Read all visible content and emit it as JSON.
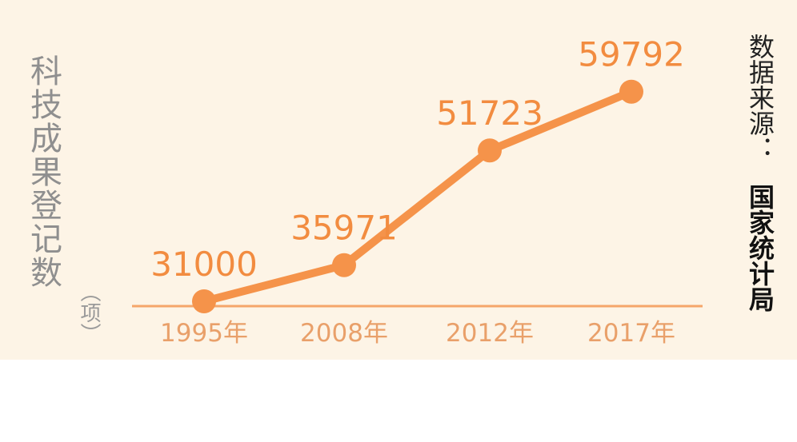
{
  "chart_data": {
    "type": "line",
    "categories": [
      "1995年",
      "2008年",
      "2012年",
      "2017年"
    ],
    "values": [
      31000,
      35971,
      51723,
      59792
    ],
    "data_labels": [
      "31000",
      "35971",
      "51723",
      "59792"
    ],
    "ylabel": "科技成果登记数",
    "yunit": "（项）",
    "source_label": "数据来源：",
    "source_name": "国家统计局",
    "legend": "none",
    "grid": false,
    "colors": {
      "line": "#f5934a",
      "marker": "#f5934a",
      "labels": "#f28c40",
      "ticks": "#e9a06a",
      "axis": "#f5a66a",
      "background": "#fdf4e6"
    }
  }
}
